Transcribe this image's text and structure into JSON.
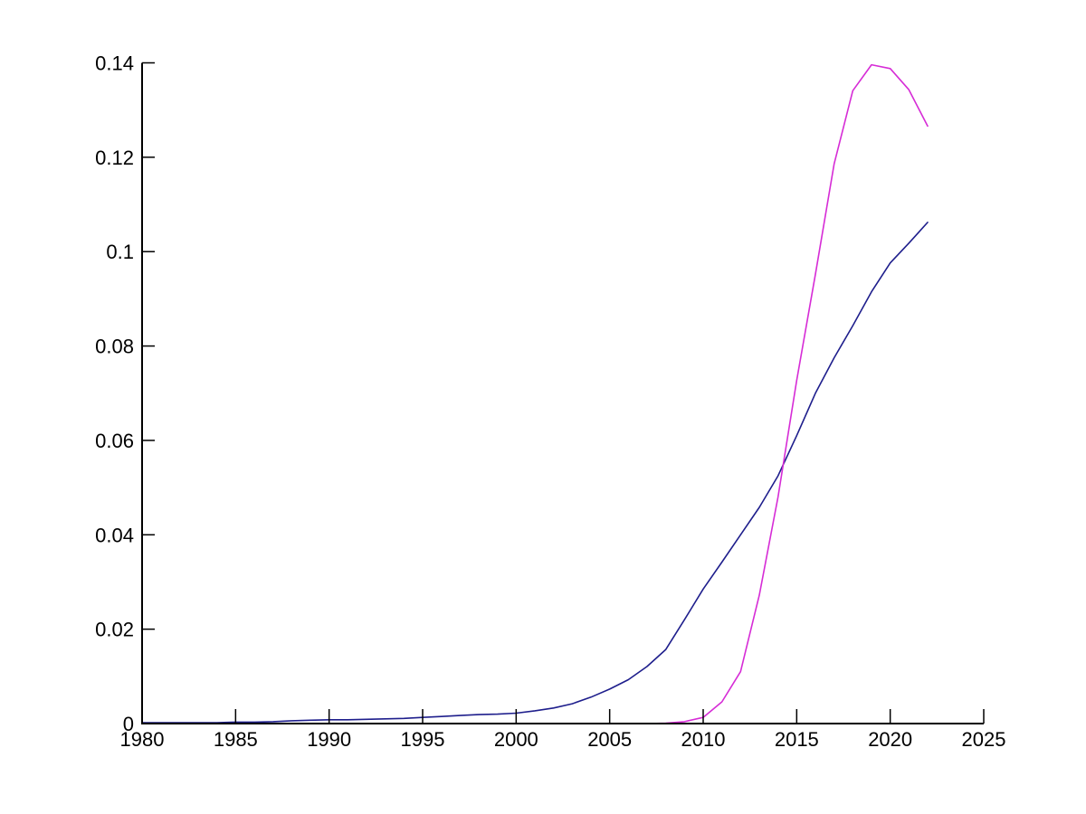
{
  "figure": {
    "background": "#ffffff",
    "title": "",
    "legend": null
  },
  "chart_data": {
    "type": "line",
    "title": "",
    "xlabel": "",
    "ylabel": "",
    "grid": false,
    "legend_position": "none",
    "axis_color": "#000000",
    "background": "#ffffff",
    "xlim": [
      1980,
      2025
    ],
    "ylim": [
      0,
      0.14
    ],
    "x_ticks": {
      "values": [
        1980,
        1985,
        1990,
        1995,
        2000,
        2005,
        2010,
        2015,
        2020,
        2025
      ],
      "labels": [
        "1980",
        "1985",
        "1990",
        "1995",
        "2000",
        "2005",
        "2010",
        "2015",
        "2020",
        "2025"
      ]
    },
    "y_ticks": {
      "values": [
        0,
        0.02,
        0.04,
        0.06,
        0.08,
        0.1,
        0.12,
        0.14
      ],
      "labels": [
        "0",
        "0.02",
        "0.04",
        "0.06",
        "0.08",
        "0.1",
        "0.12",
        "0.14"
      ]
    },
    "x": [
      1980,
      1981,
      1982,
      1983,
      1984,
      1985,
      1986,
      1987,
      1988,
      1989,
      1990,
      1991,
      1992,
      1993,
      1994,
      1995,
      1996,
      1997,
      1998,
      1999,
      2000,
      2001,
      2002,
      2003,
      2004,
      2005,
      2006,
      2007,
      2008,
      2009,
      2010,
      2011,
      2012,
      2013,
      2014,
      2015,
      2016,
      2017,
      2018,
      2019,
      2020,
      2021,
      2022
    ],
    "series": [
      {
        "name": "blue-series",
        "color": "#1e1e8c",
        "values": [
          0.0002,
          0.0002,
          0.0002,
          0.0002,
          0.0002,
          0.0003,
          0.0003,
          0.0004,
          0.0006,
          0.0007,
          0.0008,
          0.0008,
          0.0009,
          0.001,
          0.0011,
          0.0013,
          0.0015,
          0.0017,
          0.0019,
          0.002,
          0.0022,
          0.0027,
          0.0033,
          0.0042,
          0.0056,
          0.0073,
          0.0093,
          0.0121,
          0.0157,
          0.022,
          0.0285,
          0.0342,
          0.04,
          0.0458,
          0.0525,
          0.061,
          0.07,
          0.0775,
          0.0843,
          0.0915,
          0.0976,
          0.1018,
          0.1062
        ]
      },
      {
        "name": "magenta-series",
        "color": "#d62cd6",
        "values": [
          0.0,
          0.0,
          0.0,
          0.0,
          0.0,
          0.0,
          0.0,
          0.0,
          0.0,
          0.0,
          0.0,
          0.0,
          0.0,
          0.0,
          0.0,
          0.0,
          0.0,
          0.0,
          0.0,
          0.0,
          0.0,
          0.0,
          0.0,
          0.0,
          0.0,
          0.0,
          0.0,
          0.0,
          0.0001,
          0.0004,
          0.0013,
          0.0046,
          0.011,
          0.0272,
          0.048,
          0.0727,
          0.0952,
          0.1186,
          0.1341,
          0.1396,
          0.1388,
          0.1343,
          0.1266
        ]
      }
    ]
  }
}
